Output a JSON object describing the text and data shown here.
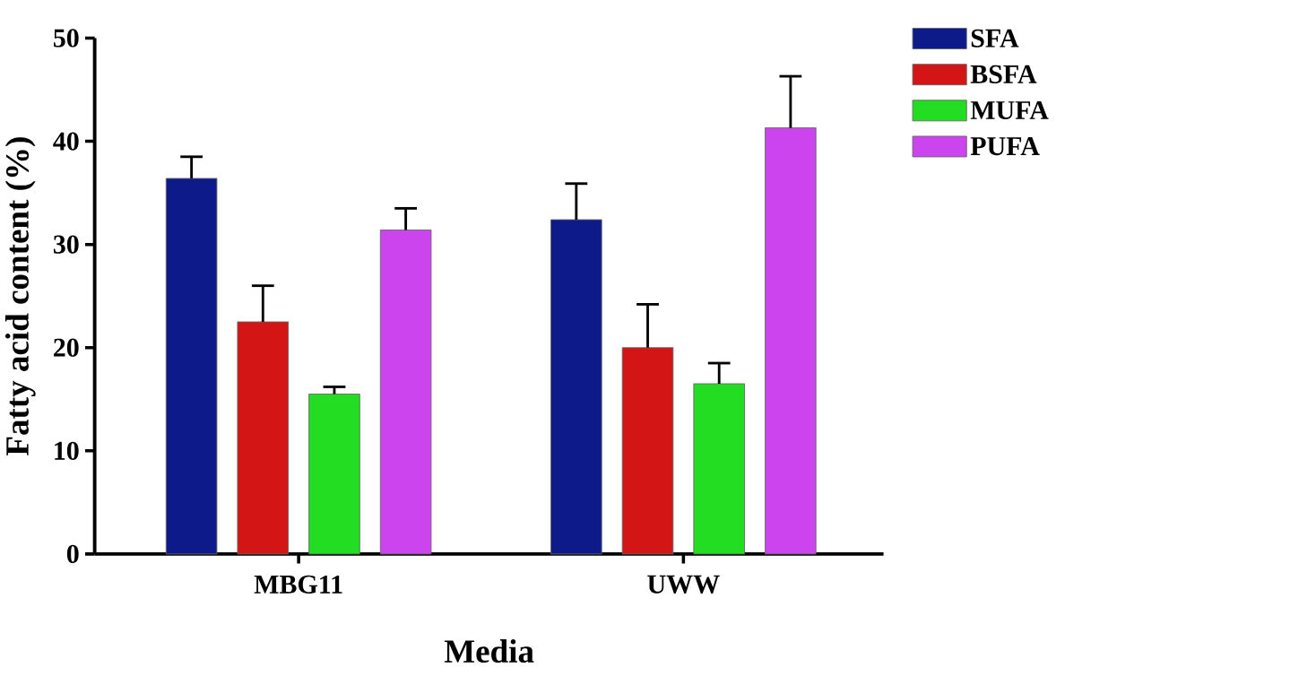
{
  "chart_data": {
    "type": "bar",
    "xlabel": "Media",
    "ylabel": "Fatty acid content (%)",
    "categories": [
      "MBG11",
      "UWW"
    ],
    "series": [
      {
        "name": "SFA",
        "color": "#0d1a8a",
        "values": [
          36.4,
          32.4
        ],
        "errors": [
          [
            36.4,
            38.5
          ],
          [
            32.4,
            35.9
          ]
        ]
      },
      {
        "name": "BSFA",
        "color": "#d41515",
        "values": [
          22.5,
          20.0
        ],
        "errors": [
          [
            22.5,
            26.0
          ],
          [
            20.0,
            24.2
          ]
        ]
      },
      {
        "name": "MUFA",
        "color": "#22dd22",
        "values": [
          15.5,
          16.5
        ],
        "errors": [
          [
            15.5,
            16.2
          ],
          [
            16.5,
            18.5
          ]
        ]
      },
      {
        "name": "PUFA",
        "color": "#cc44ee",
        "values": [
          31.4,
          41.3
        ],
        "errors": [
          [
            31.4,
            33.5
          ],
          [
            41.3,
            46.3
          ]
        ]
      }
    ],
    "ylim": [
      0,
      50
    ],
    "yticks": [
      0,
      10,
      20,
      30,
      40,
      50
    ],
    "legend": "top right",
    "grid": false
  }
}
